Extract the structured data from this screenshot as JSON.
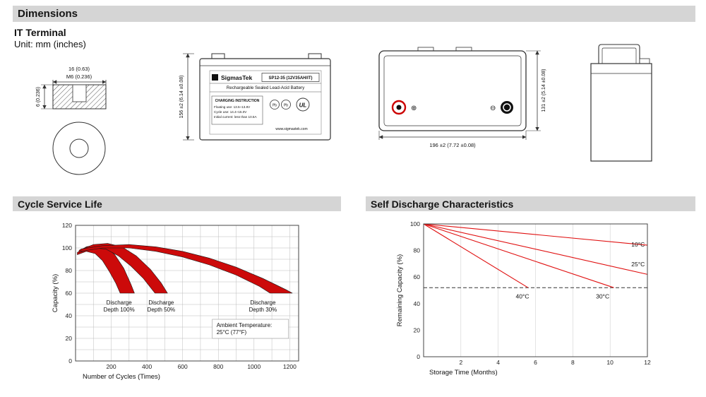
{
  "header": {
    "title": "Dimensions"
  },
  "terminal": {
    "title": "IT Terminal",
    "unit": "Unit: mm (inches)",
    "dim_width": "16 (0.63)",
    "dim_thread": "M6 (0.236)",
    "dim_height": "6 (0.236)"
  },
  "front_view": {
    "dim_height": "156 ±2 (6.14 ±0.08)",
    "brand": "SigmasTek",
    "model": "SP12-35 (12V35AH/IT)",
    "subtitle": "Rechargeable Sealed Lead-Acid Battery",
    "charging_title": "CHARGING INSTRUCTION",
    "charging_line1": "Floating use: 13.5~13.8V",
    "charging_line2": "Cycle use: 14.4~15.0V",
    "charging_line3": "Initial current: less than 10.5A",
    "pb": "Pb",
    "ul": "UL",
    "website": "www.sigmastek.com"
  },
  "top_view": {
    "dim_width": "196 ±2 (7.72 ±0.08)",
    "dim_height": "131 ±2 (5.14 ±0.08)",
    "plus": "⊕",
    "minus": "⊖"
  },
  "charts": {
    "cycle_title": "Cycle Service Life",
    "discharge_title": "Self Discharge Characteristics"
  },
  "chart_data": [
    {
      "type": "area",
      "title": "Cycle Service Life",
      "xlabel": "Number of Cycles (Times)",
      "ylabel": "Capacity (%)",
      "xlim": [
        0,
        1250
      ],
      "ylim": [
        0,
        120
      ],
      "xticks": [
        200,
        400,
        600,
        800,
        1000,
        1200
      ],
      "yticks": [
        0,
        20,
        40,
        60,
        80,
        100,
        120
      ],
      "grid_step_x": 100,
      "grid_step_y": 10,
      "grid": true,
      "color": "#cc0a0a",
      "bands": [
        {
          "name": "Discharge Depth 100%",
          "upper": [
            [
              10,
              96
            ],
            [
              60,
              101
            ],
            [
              120,
              103
            ],
            [
              170,
              101
            ],
            [
              220,
              94
            ],
            [
              270,
              82
            ],
            [
              310,
              68
            ],
            [
              330,
              60
            ]
          ],
          "lower": [
            [
              10,
              94
            ],
            [
              60,
              97
            ],
            [
              110,
              95
            ],
            [
              150,
              89
            ],
            [
              190,
              79
            ],
            [
              225,
              69
            ],
            [
              250,
              60
            ]
          ]
        },
        {
          "name": "Discharge Depth 50%",
          "upper": [
            [
              20,
              98
            ],
            [
              100,
              103
            ],
            [
              180,
              104
            ],
            [
              260,
              101
            ],
            [
              340,
              93
            ],
            [
              420,
              81
            ],
            [
              480,
              69
            ],
            [
              515,
              60
            ]
          ],
          "lower": [
            [
              20,
              96
            ],
            [
              100,
              100
            ],
            [
              170,
              99
            ],
            [
              240,
              93
            ],
            [
              310,
              84
            ],
            [
              380,
              73
            ],
            [
              430,
              63
            ],
            [
              445,
              60
            ]
          ]
        },
        {
          "name": "Discharge Depth 30%",
          "upper": [
            [
              30,
              99
            ],
            [
              150,
              102
            ],
            [
              300,
              103
            ],
            [
              450,
              101
            ],
            [
              600,
              97
            ],
            [
              750,
              91
            ],
            [
              900,
              83
            ],
            [
              1050,
              73
            ],
            [
              1180,
              63
            ],
            [
              1215,
              60
            ]
          ],
          "lower": [
            [
              30,
              97
            ],
            [
              150,
              100
            ],
            [
              300,
              100
            ],
            [
              450,
              97
            ],
            [
              600,
              92
            ],
            [
              750,
              85
            ],
            [
              900,
              76
            ],
            [
              1030,
              66
            ],
            [
              1090,
              60
            ]
          ]
        }
      ],
      "annotations": [
        {
          "lines": [
            "Discharge",
            "Depth 100%"
          ],
          "x": 244,
          "y": 50,
          "anchor": "middle",
          "box": false
        },
        {
          "lines": [
            "Discharge",
            "Depth 50%"
          ],
          "x": 480,
          "y": 50,
          "anchor": "middle",
          "box": false
        },
        {
          "lines": [
            "Discharge",
            "Depth 30%"
          ],
          "x": 1050,
          "y": 50,
          "anchor": "middle",
          "box": false
        },
        {
          "lines": [
            "Ambient Temperature:",
            "25°C (77°F)"
          ],
          "x": 790,
          "y": 30,
          "anchor": "start",
          "box": true
        }
      ]
    },
    {
      "type": "line",
      "title": "Self Discharge Characteristics",
      "xlabel": "Storage Time (Months)",
      "ylabel": "Remaining Capacity (%)",
      "xlim": [
        0,
        12
      ],
      "ylim": [
        0,
        100
      ],
      "xticks": [
        2,
        4,
        6,
        8,
        10,
        12
      ],
      "yticks": [
        0,
        20,
        40,
        60,
        80,
        100
      ],
      "grid_step_x": 2,
      "grid": true,
      "color": "#e01010",
      "dashed_line_y": 52,
      "series": [
        {
          "name": "10°C",
          "points": [
            [
              0,
              100
            ],
            [
              12,
              84
            ]
          ],
          "label_x": 11.5,
          "label_y": 83
        },
        {
          "name": "25°C",
          "points": [
            [
              0,
              100
            ],
            [
              12,
              62
            ]
          ],
          "label_x": 11.5,
          "label_y": 68
        },
        {
          "name": "30°C",
          "points": [
            [
              0,
              100
            ],
            [
              10.2,
              52
            ]
          ],
          "label_x": 9.6,
          "label_y": 44
        },
        {
          "name": "40°C",
          "points": [
            [
              0,
              100
            ],
            [
              5.6,
              52
            ]
          ],
          "label_x": 5.3,
          "label_y": 44
        }
      ],
      "legend_position": "inline-right"
    }
  ]
}
